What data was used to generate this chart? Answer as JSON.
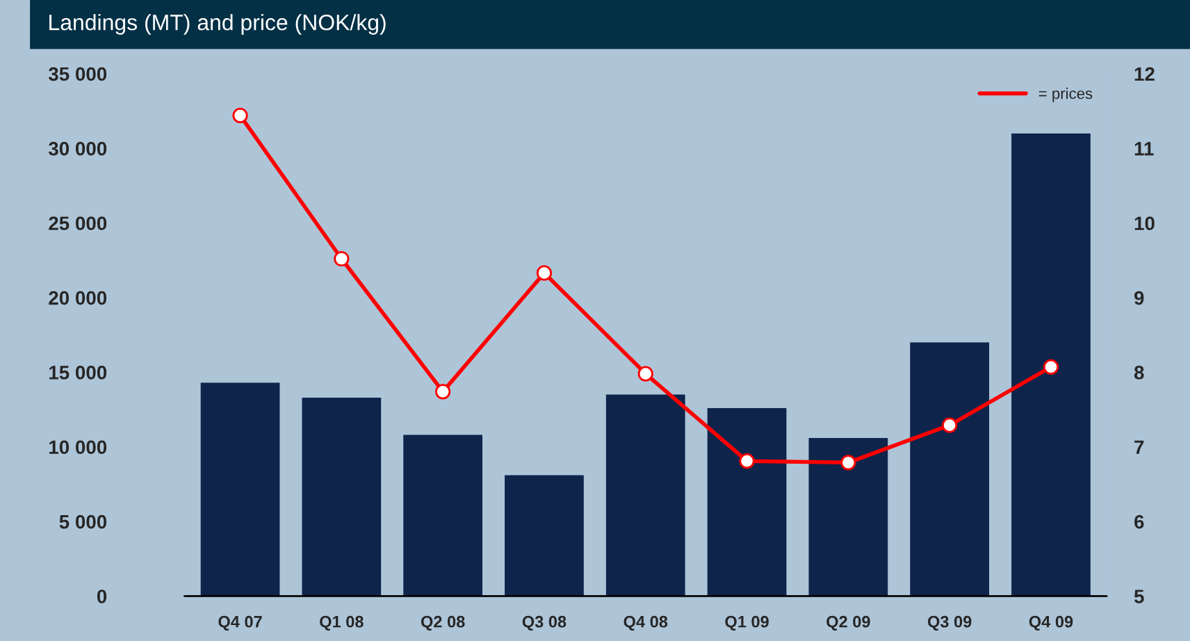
{
  "chart_data": {
    "type": "bar",
    "title": "Landings (MT) and price (NOK/kg)",
    "categories": [
      "Q4 07",
      "Q1 08",
      "Q2 08",
      "Q3 08",
      "Q4 08",
      "Q1 09",
      "Q2 09",
      "Q3 09",
      "Q4 09"
    ],
    "series": [
      {
        "color": "#0f244b",
        "values": [
          14300,
          13300,
          10800,
          8100,
          13500,
          12600,
          10600,
          17000,
          31000
        ]
      },
      {
        "type": "line",
        "name": "= prices",
        "axis": "y2",
        "color": "#ff0000",
        "marker": "circle",
        "values": [
          11.44,
          9.52,
          7.74,
          9.33,
          7.98,
          6.81,
          6.79,
          7.29,
          8.07
        ]
      }
    ],
    "ylim": [
      0,
      35000
    ],
    "yticks": [
      0,
      {
        "value": 5000,
        "label": "5 000"
      },
      {
        "value": 10000,
        "label": "10 000"
      },
      {
        "value": 15000,
        "label": "15 000"
      },
      {
        "value": 20000,
        "label": "20 000"
      },
      {
        "value": 25000,
        "label": "25 000"
      },
      {
        "value": 30000,
        "label": "30 000"
      },
      {
        "value": 35000,
        "label": "35 000"
      }
    ],
    "y2lim": [
      5,
      12
    ],
    "y2ticks": [
      5,
      6,
      7,
      8,
      9,
      10,
      11,
      12
    ],
    "grid": false,
    "legend": "top right"
  }
}
